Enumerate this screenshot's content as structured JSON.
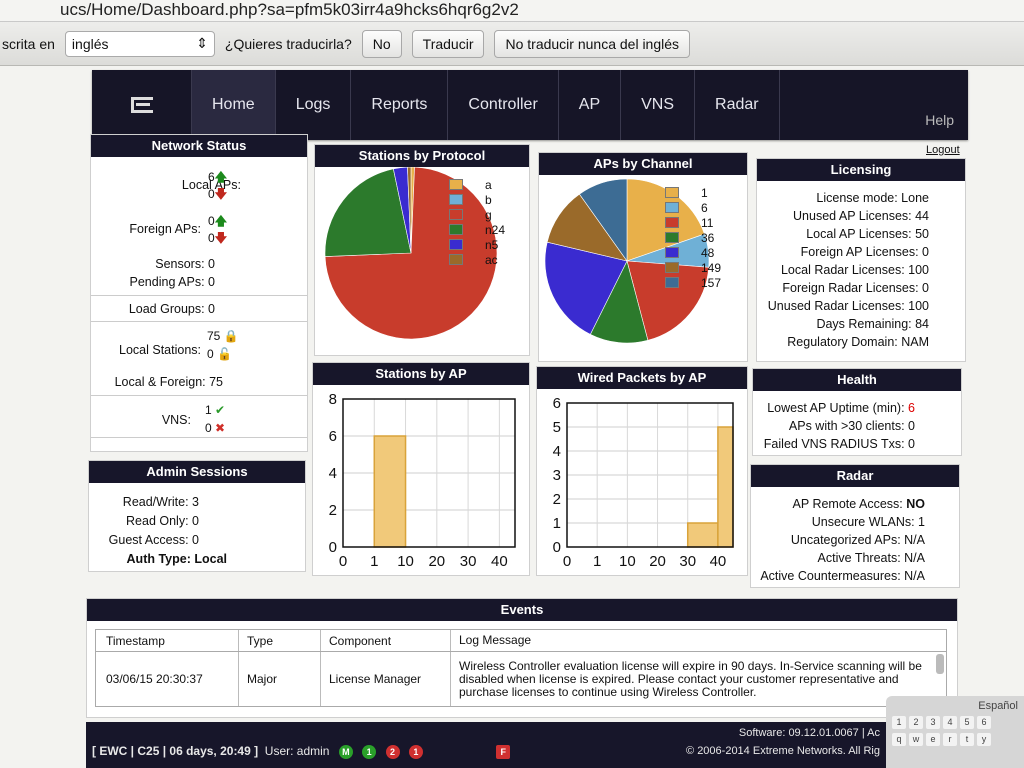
{
  "browser": {
    "url": "ucs/Home/Dashboard.php?sa=pfm5k03irr4a9hcks6hqr6g2v2"
  },
  "translate": {
    "lead_label": "scrita en",
    "language": "inglés",
    "question": "¿Quieres traducirla?",
    "no_label": "No",
    "translate_label": "Traducir",
    "never_label": "No traducir nunca del inglés"
  },
  "nav": {
    "items": [
      "Home",
      "Logs",
      "Reports",
      "Controller",
      "AP",
      "VNS",
      "Radar"
    ],
    "help": "Help",
    "logout": "Logout"
  },
  "network_status": {
    "title": "Network Status",
    "local_aps_label": "Local APs:",
    "local_aps_up": "6",
    "local_aps_down": "0",
    "foreign_aps_label": "Foreign APs:",
    "foreign_aps_up": "0",
    "foreign_aps_down": "0",
    "sensors": "Sensors: 0",
    "pending": "Pending APs: 0",
    "load_groups": "Load Groups: 0",
    "local_stations_label": "Local Stations:",
    "local_stations_locked": "75",
    "local_stations_unlocked": "0",
    "local_foreign": "Local & Foreign: 75",
    "vns_label": "VNS:",
    "vns_ok": "1",
    "vns_bad": "0"
  },
  "admin_sessions": {
    "title": "Admin Sessions",
    "rw": "Read/Write: 3",
    "ro": "Read Only: 0",
    "guest": "Guest Access: 0",
    "auth": "Auth Type: Local"
  },
  "charts": {
    "protocol_title": "Stations by Protocol",
    "channel_title": "APs by Channel",
    "stations_ap_title": "Stations by AP",
    "wired_title": "Wired Packets by AP"
  },
  "chart_data": [
    {
      "type": "pie",
      "title": "Stations by Protocol",
      "labels": [
        "a",
        "b",
        "g",
        "n24",
        "n5",
        "ac"
      ],
      "values": [
        0.5,
        0,
        56,
        17,
        2,
        0.5
      ],
      "colors": [
        "#e8b04a",
        "#6fb0d6",
        "#c83c2c",
        "#2c7a2c",
        "#3a2bd0",
        "#9a6a2a"
      ]
    },
    {
      "type": "pie",
      "title": "APs by Channel",
      "labels": [
        "1",
        "6",
        "11",
        "36",
        "48",
        "149",
        "157"
      ],
      "values": [
        12,
        4,
        12,
        7,
        13,
        7,
        6
      ],
      "colors": [
        "#e8b04a",
        "#6fb0d6",
        "#c83c2c",
        "#2c7a2c",
        "#3a2bd0",
        "#9a6a2a",
        "#3d6c94"
      ]
    },
    {
      "type": "bar",
      "title": "Stations by AP",
      "x_ticks": [
        "0",
        "1",
        "10",
        "20",
        "30",
        "40"
      ],
      "y_ticks": [
        0,
        2,
        4,
        6,
        8
      ],
      "ylim": [
        0,
        8
      ],
      "bars": [
        {
          "x_from": 1,
          "x_to": 10,
          "value": 6
        }
      ]
    },
    {
      "type": "bar",
      "title": "Wired Packets by AP",
      "x_ticks": [
        "0",
        "1",
        "10",
        "20",
        "30",
        "40"
      ],
      "y_ticks": [
        0,
        1,
        2,
        3,
        4,
        5,
        6
      ],
      "ylim": [
        0,
        6
      ],
      "bars": [
        {
          "x_from": 30,
          "x_to": 40,
          "value": 1
        },
        {
          "x_from": 40,
          "x_to": 50,
          "value": 5
        }
      ]
    }
  ],
  "licensing": {
    "title": "Licensing",
    "rows": [
      "License mode: Lone",
      "Unused AP Licenses: 44",
      "Local AP Licenses: 50",
      "Foreign AP Licenses: 0",
      "Local Radar Licenses: 100",
      "Foreign Radar Licenses: 0",
      "Unused Radar Licenses: 100",
      "Days Remaining: 84",
      "Regulatory Domain: NAM"
    ]
  },
  "health": {
    "title": "Health",
    "uptime_label": "Lowest AP Uptime (min):",
    "uptime_value": "6",
    "clients": "APs with >30 clients: 0",
    "radius": "Failed VNS RADIUS Txs: 0"
  },
  "radar": {
    "title": "Radar",
    "remote_label": "AP Remote Access:",
    "remote_value": "NO",
    "rows": [
      "Unsecure WLANs: 1",
      "Uncategorized APs: N/A",
      "Active Threats: N/A",
      "Active Countermeasures: N/A"
    ]
  },
  "events": {
    "title": "Events",
    "headers": [
      "Timestamp",
      "Type",
      "Component",
      "Log Message"
    ],
    "row": {
      "timestamp": "03/06/15 20:30:37",
      "type": "Major",
      "component": "License Manager",
      "message": "Wireless Controller evaluation license will expire in 90 days. In-Service scanning will be disabled when license is expired. Please contact your customer representative and purchase licenses to continue using Wireless Controller."
    }
  },
  "statusbar": {
    "session": "[ EWC | C25 | 06 days, 20:49 ]",
    "user": "User: admin",
    "indicators": [
      "M",
      "1",
      "2",
      "1"
    ],
    "flag": "F",
    "software": "Software: 09.12.01.0067 | Ac",
    "copyright": "© 2006-2014 Extreme Networks. All Rig"
  },
  "keyboard": {
    "language": "Español",
    "row1": [
      "1",
      "2",
      "3",
      "4",
      "5",
      "6"
    ],
    "row2": [
      "q",
      "w",
      "e",
      "r",
      "t",
      "y"
    ]
  },
  "colors": {
    "header": "#17162a",
    "bar": "#f1c97a",
    "bar_edge": "#d9a33a"
  }
}
